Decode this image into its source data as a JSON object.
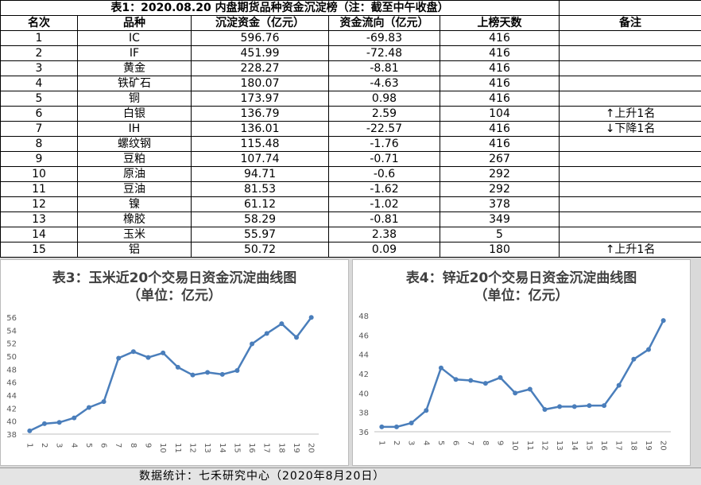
{
  "table": {
    "title": "表1：2020.08.20 内盘期货品种资金沉淀榜（注：截至中午收盘）",
    "header": [
      "名次",
      "品种",
      "沉淀资金（亿元）",
      "资金流向（亿元）",
      "上榜天数",
      "备注"
    ],
    "rows": [
      [
        1,
        "IC",
        596.76,
        -69.83,
        416,
        null
      ],
      [
        2,
        "IF",
        451.99,
        -72.48,
        416,
        null
      ],
      [
        3,
        "黄金",
        228.27,
        -8.81,
        416,
        null
      ],
      [
        4,
        "铁矿石",
        180.07,
        -4.63,
        416,
        null
      ],
      [
        5,
        "铜",
        173.97,
        0.98,
        416,
        null
      ],
      [
        6,
        "白银",
        136.79,
        2.59,
        104,
        "↑上升1名"
      ],
      [
        7,
        "IH",
        136.01,
        -22.57,
        416,
        "↓下降1名"
      ],
      [
        8,
        "螺纹钢",
        115.48,
        -1.76,
        416,
        null
      ],
      [
        9,
        "豆粕",
        107.74,
        -0.71,
        267,
        null
      ],
      [
        10,
        "原油",
        94.71,
        -0.6,
        292,
        null
      ],
      [
        11,
        "豆油",
        81.53,
        -1.62,
        292,
        null
      ],
      [
        12,
        "镍",
        61.12,
        -1.02,
        378,
        null
      ],
      [
        13,
        "橡胶",
        58.29,
        -0.81,
        349,
        null
      ],
      [
        14,
        "玉米",
        55.97,
        2.38,
        5,
        null
      ],
      [
        15,
        "铝",
        50.72,
        0.09,
        180,
        "↑上升1名"
      ]
    ]
  },
  "chart_data": [
    {
      "type": "line",
      "title": "表3：玉米近20个交易日资金沉淀曲线图",
      "subtitle": "（单位：亿元）",
      "categories": [
        "1",
        "2",
        "3",
        "4",
        "5",
        "6",
        "7",
        "8",
        "9",
        "10",
        "11",
        "12",
        "13",
        "14",
        "15",
        "16",
        "17",
        "18",
        "19",
        "20"
      ],
      "values": [
        38.5,
        39.6,
        39.8,
        40.5,
        42.1,
        43.0,
        49.7,
        50.7,
        49.8,
        50.5,
        48.3,
        47.1,
        47.5,
        47.2,
        47.8,
        51.9,
        53.5,
        55.0,
        52.9,
        55.97
      ],
      "color": "#4a7ebb",
      "ylim": [
        38,
        56
      ],
      "yticks": [
        38,
        40,
        42,
        44,
        46,
        48,
        50,
        52,
        54,
        56
      ],
      "grid": false
    },
    {
      "type": "line",
      "title": "表4：锌近20个交易日资金沉淀曲线图",
      "subtitle": "（单位：亿元）",
      "categories": [
        "1",
        "2",
        "3",
        "4",
        "5",
        "6",
        "7",
        "8",
        "9",
        "10",
        "11",
        "12",
        "13",
        "14",
        "15",
        "16",
        "17",
        "18",
        "19",
        "20"
      ],
      "values": [
        36.5,
        36.5,
        36.9,
        38.2,
        42.6,
        41.4,
        41.3,
        41.0,
        41.6,
        40.0,
        40.4,
        38.3,
        38.6,
        38.6,
        38.7,
        38.7,
        40.8,
        43.5,
        44.5,
        47.5
      ],
      "color": "#4a7ebb",
      "ylim": [
        36,
        48
      ],
      "yticks": [
        36,
        38,
        40,
        42,
        44,
        46,
        48
      ],
      "grid": false
    }
  ],
  "footer": "数据统计：七禾研究中心（2020年8月20日）"
}
